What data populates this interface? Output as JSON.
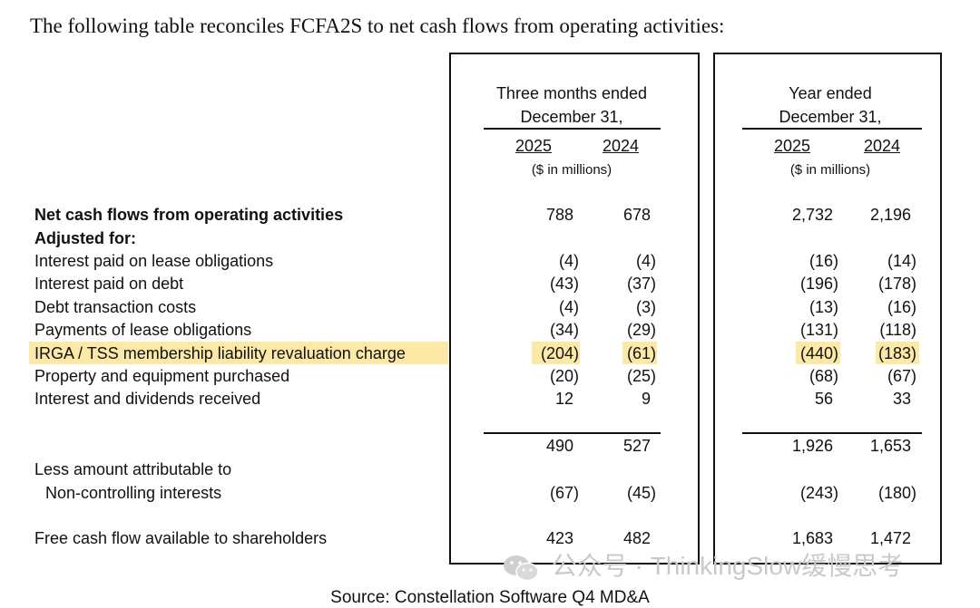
{
  "intro": "The following table reconciles FCFA2S to net cash flows from operating activities:",
  "col_groups": [
    {
      "line1": "Three months ended",
      "line2": "December 31,",
      "years": [
        "2025",
        "2024"
      ],
      "units": "($ in millions)"
    },
    {
      "line1": "Year ended",
      "line2": "December 31,",
      "years": [
        "2025",
        "2024"
      ],
      "units": "($ in millions)"
    }
  ],
  "rows": [
    {
      "label": "Net cash flows from operating activities",
      "values": [
        "788",
        "678",
        "2,732",
        "2,196"
      ]
    },
    {
      "label": "Adjusted for:"
    },
    {
      "label": "Interest paid on lease obligations",
      "values": [
        "(4)",
        "(4)",
        "(16)",
        "(14)"
      ]
    },
    {
      "label": "Interest paid on debt",
      "values": [
        "(43)",
        "(37)",
        "(196)",
        "(178)"
      ]
    },
    {
      "label": "Debt transaction costs",
      "values": [
        "(4)",
        "(3)",
        "(13)",
        "(16)"
      ]
    },
    {
      "label": "Payments of lease obligations",
      "values": [
        "(34)",
        "(29)",
        "(131)",
        "(118)"
      ]
    },
    {
      "label": "IRGA / TSS membership liability revaluation charge",
      "values": [
        "(204)",
        "(61)",
        "(440)",
        "(183)"
      ]
    },
    {
      "label": "Property and equipment purchased",
      "values": [
        "(20)",
        "(25)",
        "(68)",
        "(67)"
      ]
    },
    {
      "label": "Interest and dividends received",
      "values": [
        "12",
        "9",
        "56",
        "33"
      ]
    },
    {
      "label": "",
      "values": [
        "490",
        "527",
        "1,926",
        "1,653"
      ]
    },
    {
      "label": "Less amount attributable to"
    },
    {
      "label": "Non-controlling interests",
      "values": [
        "(67)",
        "(45)",
        "(243)",
        "(180)"
      ]
    },
    {
      "label": "Free cash flow available to shareholders",
      "values": [
        "423",
        "482",
        "1,683",
        "1,472"
      ]
    }
  ],
  "highlight_color": "#fde9a6",
  "watermark": "公众号 · ThinkingSlow缓慢思考",
  "watermark_icon": "wechat-icon",
  "source": "Source: Constellation Software Q4 MD&A"
}
